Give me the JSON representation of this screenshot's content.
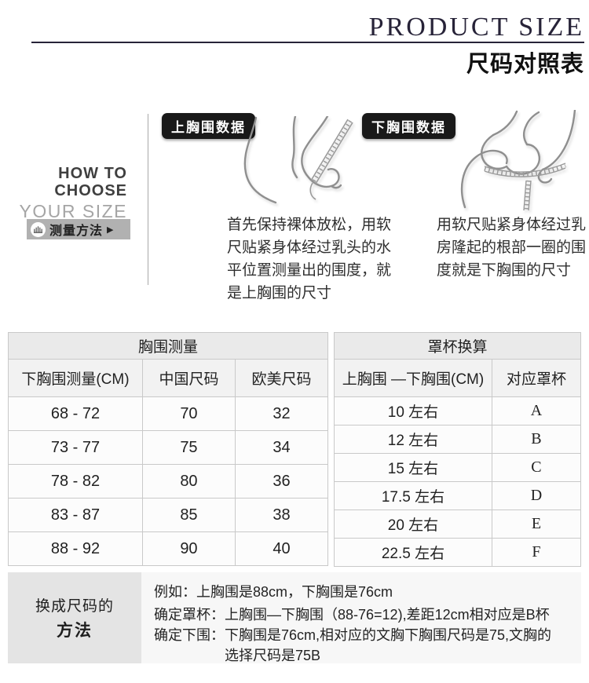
{
  "header": {
    "title_en": "PRODUCT SIZE",
    "title_zh": "尺码对照表"
  },
  "how_to": {
    "line1": "HOW TO",
    "line2": "CHOOSE",
    "line3": "YOUR SIZE",
    "button_label": "测量方法",
    "button_arrow": "▶",
    "sections": [
      {
        "badge": "上胸围数据",
        "description": "首先保持裸体放松，用软尺贴紧身体经过乳头的水平位置测量出的围度，就是上胸围的尺寸"
      },
      {
        "badge": "下胸围数据",
        "description": "用软尺贴紧身体经过乳房隆起的根部一圈的围度就是下胸围的尺寸"
      }
    ]
  },
  "tables": {
    "bust_measure": {
      "title": "胸围测量",
      "columns": [
        "下胸围测量(CM)",
        "中国尺码",
        "欧美尺码"
      ],
      "rows": [
        [
          "68 - 72",
          "70",
          "32"
        ],
        [
          "73 - 77",
          "75",
          "34"
        ],
        [
          "78 - 82",
          "80",
          "36"
        ],
        [
          "83 - 87",
          "85",
          "38"
        ],
        [
          "88 - 92",
          "90",
          "40"
        ]
      ]
    },
    "cup_convert": {
      "title": "罩杯换算",
      "columns": [
        "上胸围 —下胸围(CM)",
        "对应罩杯"
      ],
      "rows": [
        [
          "10 左右",
          "A"
        ],
        [
          "12 左右",
          "B"
        ],
        [
          "15 左右",
          "C"
        ],
        [
          "17.5 左右",
          "D"
        ],
        [
          "20 左右",
          "E"
        ],
        [
          "22.5 左右",
          "F"
        ]
      ]
    }
  },
  "method": {
    "box_line1": "换成尺码的",
    "box_line2": "方法",
    "lines": [
      "例如：上胸围是88cm，下胸围是76cm",
      "确定罩杯：上胸围—下胸围（88-76=12),差距12cm相对应是B杯",
      "确定下围：下胸围是76cm,相对应的文胸下胸围尺码是75,文胸的",
      "选择尺码是75B"
    ]
  },
  "icons": {
    "measure_button_icon": "ruler-icon",
    "badge_style": "black-rounded"
  },
  "colors": {
    "title_dark": "#272338",
    "badge_bg": "#191919",
    "button_bg": "#b1b1b1",
    "table_title_bg": "#eaeaea",
    "table_header_bg": "#f2f2f2",
    "method_box_bg": "#e4e4e4",
    "method_panel_bg": "#f7f7f7"
  }
}
